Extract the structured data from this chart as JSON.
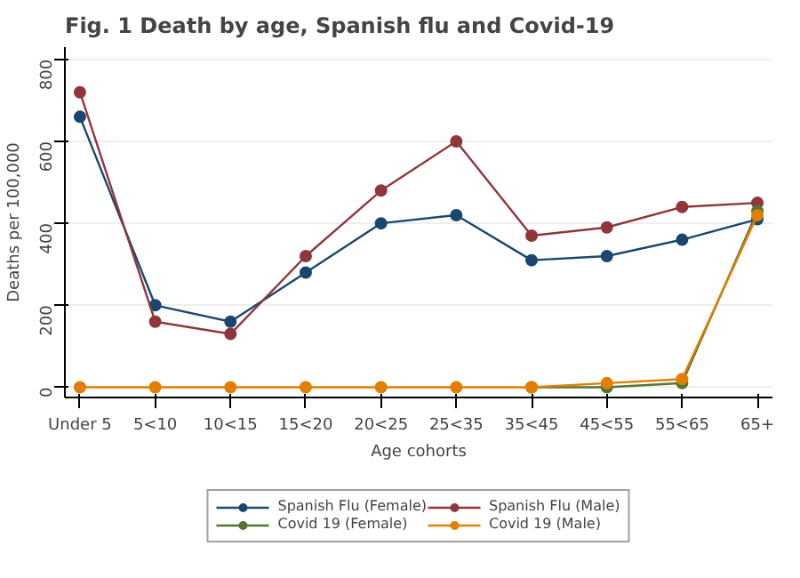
{
  "chart_data": {
    "type": "line",
    "title": "Fig. 1 Death by age, Spanish flu and Covid-19",
    "xlabel": "Age cohorts",
    "ylabel": "Deaths per 100,000",
    "categories": [
      "Under 5",
      "5<10",
      "10<15",
      "15<20",
      "20<25",
      "25<35",
      "35<45",
      "45<55",
      "55<65",
      "65+"
    ],
    "series": [
      {
        "name": "Spanish Flu (Female)",
        "color": "#1a476f",
        "values": [
          660,
          200,
          160,
          280,
          400,
          420,
          310,
          320,
          360,
          410
        ]
      },
      {
        "name": "Spanish Flu (Male)",
        "color": "#90353b",
        "values": [
          720,
          160,
          130,
          320,
          480,
          600,
          370,
          390,
          440,
          450
        ]
      },
      {
        "name": "Covid 19 (Female)",
        "color": "#55752f",
        "values": [
          null,
          null,
          null,
          null,
          null,
          null,
          0,
          0,
          10,
          430
        ]
      },
      {
        "name": "Covid 19 (Male)",
        "color": "#e37e00",
        "values": [
          0,
          0,
          0,
          0,
          0,
          0,
          0,
          10,
          20,
          420
        ]
      }
    ],
    "ylim": [
      -25,
      830
    ],
    "yticks": [
      0,
      200,
      400,
      600,
      800
    ],
    "grid": "y",
    "legend": "bottom",
    "marker": "circle",
    "line_style": "solid"
  }
}
